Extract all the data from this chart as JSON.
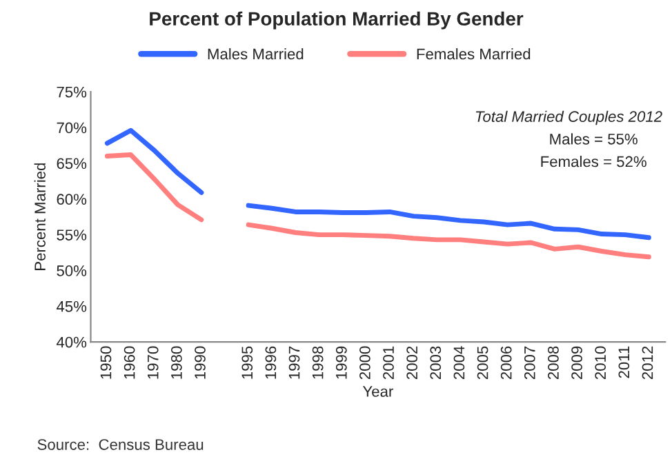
{
  "chart_data": {
    "type": "line",
    "title": "Percent of Population Married By Gender",
    "xlabel": "Year",
    "ylabel": "Percent Married",
    "categories": [
      "1950",
      "1960",
      "1970",
      "1980",
      "1990",
      null,
      "1995",
      "1996",
      "1997",
      "1998",
      "1999",
      "2000",
      "2001",
      "2002",
      "2003",
      "2004",
      "2005",
      "2006",
      "2007",
      "2008",
      "2009",
      "2010",
      "2011",
      "2012"
    ],
    "series": [
      {
        "name": "Males Married",
        "color": "#3366ff",
        "values": [
          67.8,
          69.6,
          66.8,
          63.6,
          60.9,
          null,
          59.1,
          58.7,
          58.2,
          58.2,
          58.1,
          58.1,
          58.2,
          57.6,
          57.4,
          57.0,
          56.8,
          56.4,
          56.6,
          55.8,
          55.7,
          55.1,
          55.0,
          54.6
        ]
      },
      {
        "name": "Females Married",
        "color": "#ff7f7f",
        "values": [
          66.0,
          66.2,
          62.8,
          59.2,
          57.1,
          null,
          56.4,
          55.9,
          55.3,
          55.0,
          55.0,
          54.9,
          54.8,
          54.5,
          54.3,
          54.3,
          54.0,
          53.7,
          53.9,
          53.0,
          53.3,
          52.7,
          52.2,
          51.9
        ]
      }
    ],
    "ylim": [
      40,
      75
    ],
    "yticks": [
      {
        "value": 40,
        "label": "40%"
      },
      {
        "value": 45,
        "label": "45%"
      },
      {
        "value": 50,
        "label": "50%"
      },
      {
        "value": 55,
        "label": "55%"
      },
      {
        "value": 60,
        "label": "60%"
      },
      {
        "value": 65,
        "label": "65%"
      },
      {
        "value": 70,
        "label": "70%"
      },
      {
        "value": 75,
        "label": "75%"
      }
    ],
    "grid": false,
    "legend": "top",
    "marker": "none",
    "line_style": "solid",
    "annotations": [
      "Total Married Couples 2012",
      "Males = 55%",
      "Females = 52%",
      "Source:  Census Bureau"
    ]
  }
}
